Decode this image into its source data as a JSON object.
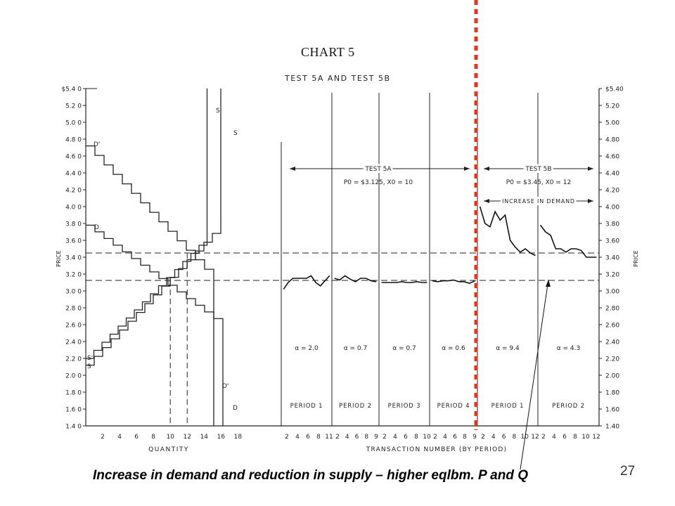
{
  "slide": {
    "caption": "Increase in demand and reduction in supply – higher eqlbm. P and Q",
    "page_number": "27",
    "marker_color": "#e8341c"
  },
  "chart_data": {
    "type": "line",
    "title": "CHART 5",
    "subtitle": "TEST 5A AND TEST 5B",
    "ylabel": "PRICE",
    "ylabel_right": "PRICE",
    "xlabel_left": "QUANTITY",
    "xlabel_right": "TRANSACTION NUMBER (BY PERIOD)",
    "ylim": [
      1.4,
      5.4
    ],
    "y_ticks_left": [
      "1.4 0",
      "1.6 0",
      "1.8 0",
      "2.0 0",
      "2.2 0",
      "2.4 0",
      "2.6 0",
      "2.8 0",
      "3.0 0",
      "3.2 0",
      "3.4 0",
      "3.6 0",
      "3.8 0",
      "4.0 0",
      "4.2 0",
      "4.4 0",
      "4.6 0",
      "4.8 0",
      "5.0 0",
      "5.2 0",
      "$5.4 0"
    ],
    "y_ticks_right": [
      "1.40",
      "1.60",
      "1.80",
      "2.00",
      "2.20",
      "2.40",
      "2.60",
      "2.80",
      "3.00",
      "3.20",
      "3.40",
      "3.60",
      "3.80",
      "4.00",
      "4.20",
      "4.40",
      "4.60",
      "4.80",
      "5.00",
      "5.20",
      "$5.40"
    ],
    "quantity_ticks": [
      "2",
      "4",
      "6",
      "8",
      "10",
      "12",
      "14",
      "16",
      "18"
    ],
    "curve_labels": {
      "S_prime_top": "S'",
      "S_top": "S",
      "D_prime_top": "D'",
      "D_top": "D",
      "S_prime_bottom": "S'",
      "S_bottom": "S",
      "D_prime_bottom": "D'",
      "D_bottom": "D"
    },
    "test_5a": {
      "label": "TEST 5A",
      "params": "P0 = $3.125, X0 = 10"
    },
    "test_5b": {
      "label": "TEST 5B",
      "params": "P0 = $3.45, X0 = 12",
      "note": "INCREASE IN DEMAND"
    },
    "equilibrium_prices": [
      3.125,
      3.45
    ],
    "periods": [
      {
        "test": "5A",
        "label": "PERIOD 1",
        "alpha": "α = 2.0",
        "ticks": [
          "2",
          "4",
          "6",
          "8",
          "11"
        ],
        "prices": [
          3.02,
          3.1,
          3.15,
          3.15,
          3.15,
          3.15,
          3.18,
          3.1,
          3.06,
          3.12,
          3.18
        ]
      },
      {
        "test": "5A",
        "label": "PERIOD 2",
        "alpha": "α = 0.7",
        "ticks": [
          "2",
          "4",
          "6",
          "8",
          "9"
        ],
        "prices": [
          3.15,
          3.13,
          3.18,
          3.14,
          3.11,
          3.15,
          3.15,
          3.12,
          3.11
        ]
      },
      {
        "test": "5A",
        "label": "PERIOD 3",
        "alpha": "α = 0.7",
        "ticks": [
          "2",
          "4",
          "6",
          "8",
          "10"
        ],
        "prices": [
          3.1,
          3.1,
          3.1,
          3.1,
          3.11,
          3.1,
          3.1,
          3.11,
          3.1,
          3.1
        ]
      },
      {
        "test": "5A",
        "label": "PERIOD 4",
        "alpha": "α = 0.6",
        "ticks": [
          "2",
          "4",
          "6",
          "8",
          "9"
        ],
        "prices": [
          3.12,
          3.11,
          3.12,
          3.12,
          3.13,
          3.11,
          3.11,
          3.09,
          3.12
        ]
      },
      {
        "test": "5B",
        "label": "PERIOD 1",
        "alpha": "α = 9.4",
        "ticks": [
          "2",
          "4",
          "6",
          "8",
          "10",
          "12"
        ],
        "prices": [
          4.0,
          3.8,
          3.76,
          3.94,
          3.84,
          3.9,
          3.6,
          3.52,
          3.46,
          3.5,
          3.45,
          3.42
        ]
      },
      {
        "test": "5B",
        "label": "PERIOD 2",
        "alpha": "α = 4.3",
        "ticks": [
          "2",
          "4",
          "6",
          "8",
          "10",
          "12"
        ],
        "prices": [
          3.78,
          3.7,
          3.66,
          3.5,
          3.5,
          3.46,
          3.5,
          3.5,
          3.48,
          3.4,
          3.4,
          3.4
        ]
      }
    ]
  }
}
